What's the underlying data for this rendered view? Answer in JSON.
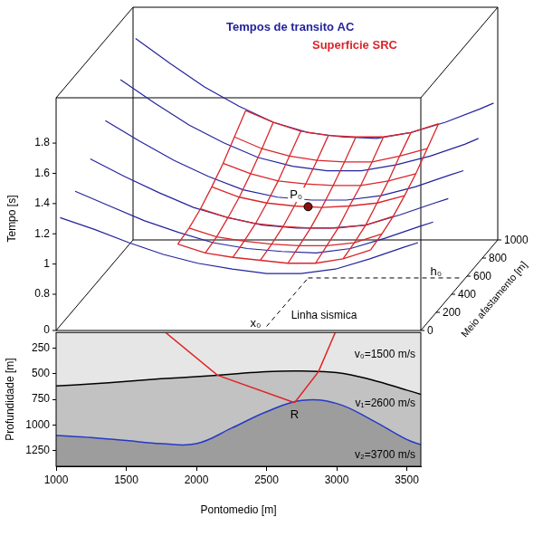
{
  "chart_data": [
    {
      "type": "line3d",
      "z_label": "Tempo [s]",
      "y_label": "Meio afastamento [m]",
      "xlim": [
        1000,
        3600
      ],
      "ylim": [
        0,
        1000
      ],
      "yticks": [
        0,
        200,
        400,
        600,
        800,
        1000
      ],
      "zlim": [
        0,
        2.1
      ],
      "zticks": [
        0,
        0.8,
        1,
        1.2,
        1.4,
        1.6,
        1.8
      ],
      "grid": false,
      "series": [
        {
          "name": "Tempos de transito AC",
          "color": "#23239c",
          "type": "line",
          "x": [
            1000,
            1250,
            1500,
            1750,
            2000,
            2250,
            2500,
            2750,
            3000,
            3250,
            3500,
            3600
          ],
          "curves": [
            {
              "y": 0,
              "values": [
                1.3,
                1.22,
                1.13,
                1.05,
                0.99,
                0.95,
                0.92,
                0.92,
                0.95,
                1.02,
                1.1,
                1.13
              ]
            },
            {
              "y": 200,
              "values": [
                1.36,
                1.26,
                1.16,
                1.08,
                1.01,
                0.97,
                0.95,
                0.94,
                0.97,
                1.04,
                1.12,
                1.15
              ]
            },
            {
              "y": 400,
              "values": [
                1.46,
                1.34,
                1.23,
                1.13,
                1.06,
                1.01,
                0.99,
                0.99,
                1.01,
                1.08,
                1.16,
                1.19
              ]
            },
            {
              "y": 600,
              "values": [
                1.6,
                1.46,
                1.33,
                1.22,
                1.13,
                1.08,
                1.06,
                1.06,
                1.09,
                1.15,
                1.23,
                1.26
              ]
            },
            {
              "y": 800,
              "values": [
                1.76,
                1.6,
                1.45,
                1.33,
                1.23,
                1.17,
                1.14,
                1.14,
                1.18,
                1.24,
                1.32,
                1.36
              ]
            },
            {
              "y": 1000,
              "values": [
                1.92,
                1.75,
                1.59,
                1.46,
                1.35,
                1.28,
                1.25,
                1.24,
                1.28,
                1.35,
                1.44,
                1.48
              ]
            }
          ]
        },
        {
          "name": "Superficie SRC",
          "color": "#d8262b",
          "type": "surface",
          "x": [
            1800,
            2000,
            2200,
            2400,
            2600,
            2800,
            3000,
            3200
          ],
          "y": [
            100,
            250,
            400,
            550,
            700,
            850,
            1000
          ],
          "values": [
            [
              1.06,
              1.0,
              0.97,
              0.95,
              0.93,
              0.93,
              0.96,
              1.02
            ],
            [
              1.08,
              1.02,
              0.99,
              0.97,
              0.96,
              0.96,
              0.98,
              1.04
            ],
            [
              1.12,
              1.06,
              1.02,
              1.0,
              0.99,
              0.99,
              1.01,
              1.07
            ],
            [
              1.18,
              1.11,
              1.07,
              1.05,
              1.04,
              1.05,
              1.07,
              1.12
            ],
            [
              1.25,
              1.18,
              1.13,
              1.11,
              1.1,
              1.1,
              1.13,
              1.18
            ],
            [
              1.34,
              1.26,
              1.21,
              1.18,
              1.17,
              1.17,
              1.21,
              1.26
            ],
            [
              1.43,
              1.35,
              1.29,
              1.26,
              1.25,
              1.25,
              1.28,
              1.34
            ]
          ]
        }
      ],
      "point": {
        "label": "P₀",
        "x": 2500,
        "y": 550,
        "z": 1.045,
        "color": "#8a1010",
        "x_text": "x₀",
        "y_text": "h₀"
      },
      "annotations": [
        {
          "text": "Linha sismica"
        }
      ]
    },
    {
      "type": "line",
      "x_label": "Pontomedio [m]",
      "y_label": "Profundidade [m]",
      "xlim": [
        1000,
        3600
      ],
      "xticks": [
        1000,
        1500,
        2000,
        2500,
        3000,
        3500
      ],
      "ylim": [
        100,
        1400
      ],
      "yticks": [
        250,
        500,
        750,
        1000,
        1250
      ],
      "grid": false,
      "x": [
        1000,
        1250,
        1500,
        1750,
        2000,
        2250,
        2500,
        2750,
        3000,
        3250,
        3500,
        3600
      ],
      "series": [
        {
          "color": "#000000",
          "values": [
            620,
            600,
            575,
            550,
            530,
            505,
            480,
            475,
            490,
            560,
            660,
            700
          ]
        },
        {
          "color": "#2638c8",
          "values": [
            1100,
            1120,
            1150,
            1180,
            1180,
            1030,
            870,
            760,
            790,
            950,
            1140,
            1190
          ]
        }
      ],
      "layers": [
        {
          "label": "v₀=1500 m/s",
          "color": "#e6e6e6"
        },
        {
          "label": "v₁=2600 m/s",
          "color": "#c2c2c2"
        },
        {
          "label": "v₂=3700 m/s",
          "color": "#9d9d9d"
        }
      ],
      "rays": {
        "color": "#e02424",
        "paths": [
          {
            "x": [
              1780,
              2150,
              2700
            ],
            "y": [
              100,
              515,
              782
            ]
          },
          {
            "x": [
              2990,
              2870,
              2700
            ],
            "y": [
              100,
              482,
              782
            ]
          }
        ]
      },
      "annotations": [
        {
          "text": "R",
          "x": 2700,
          "y": 782
        }
      ]
    }
  ]
}
